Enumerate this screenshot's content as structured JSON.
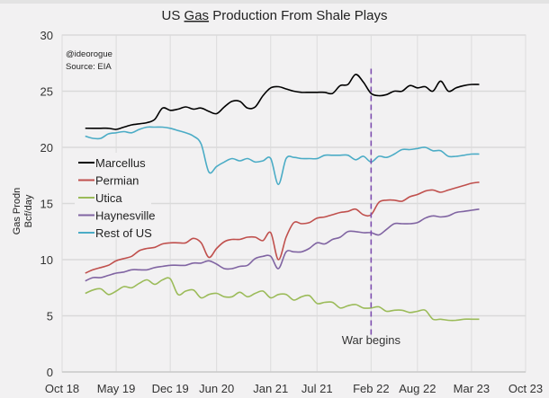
{
  "chart_data": {
    "type": "line",
    "title_parts": {
      "pre": "US ",
      "underlined": "Gas",
      "post": " Production From Shale Plays"
    },
    "ylabel_lines": [
      "Gas Prodn",
      "Bcf/day"
    ],
    "xlabel": "",
    "credit": "@ideorogue",
    "source": "Source: EIA",
    "ylim": [
      0,
      30
    ],
    "yticks": [
      0,
      5,
      10,
      15,
      20,
      25,
      30
    ],
    "xlim": [
      "2018-10",
      "2023-10"
    ],
    "xticks": [
      {
        "date": "2018-10",
        "label": "Oct 18"
      },
      {
        "date": "2019-05",
        "label": "May 19"
      },
      {
        "date": "2019-12",
        "label": "Dec 19"
      },
      {
        "date": "2020-06",
        "label": "Jun 20"
      },
      {
        "date": "2021-01",
        "label": "Jan 21"
      },
      {
        "date": "2021-07",
        "label": "Jul 21"
      },
      {
        "date": "2022-02",
        "label": "Feb 22"
      },
      {
        "date": "2022-08",
        "label": "Aug 22"
      },
      {
        "date": "2023-03",
        "label": "Mar 23"
      },
      {
        "date": "2023-10",
        "label": "Oct 23"
      }
    ],
    "grid": true,
    "legend_position": "left",
    "annotation": {
      "date": "2022-02",
      "label": "War begins",
      "color": "#7e4fb0",
      "style": "dashed",
      "yrange": [
        3,
        27
      ]
    },
    "x": [
      "2019-01",
      "2019-02",
      "2019-03",
      "2019-04",
      "2019-05",
      "2019-06",
      "2019-07",
      "2019-08",
      "2019-09",
      "2019-10",
      "2019-11",
      "2019-12",
      "2020-01",
      "2020-02",
      "2020-03",
      "2020-04",
      "2020-05",
      "2020-06",
      "2020-07",
      "2020-08",
      "2020-09",
      "2020-10",
      "2020-11",
      "2020-12",
      "2021-01",
      "2021-02",
      "2021-03",
      "2021-04",
      "2021-05",
      "2021-06",
      "2021-07",
      "2021-08",
      "2021-09",
      "2021-10",
      "2021-11",
      "2021-12",
      "2022-01",
      "2022-02",
      "2022-03",
      "2022-04",
      "2022-05",
      "2022-06",
      "2022-07",
      "2022-08",
      "2022-09",
      "2022-10",
      "2022-11",
      "2022-12",
      "2023-01",
      "2023-02",
      "2023-03",
      "2023-04"
    ],
    "series": [
      {
        "name": "Marcellus",
        "color": "#000000",
        "values": [
          21.7,
          21.7,
          21.7,
          21.7,
          21.6,
          21.8,
          22.0,
          22.1,
          22.2,
          22.5,
          23.5,
          23.3,
          23.4,
          23.6,
          23.4,
          23.5,
          23.2,
          23.0,
          23.6,
          24.1,
          24.1,
          23.5,
          23.6,
          24.6,
          25.3,
          25.4,
          25.2,
          25.0,
          24.9,
          24.9,
          24.9,
          24.9,
          24.8,
          25.5,
          25.6,
          26.5,
          25.8,
          24.8,
          24.6,
          24.7,
          25.0,
          25.0,
          25.5,
          25.3,
          25.4,
          25.0,
          25.9,
          25.0,
          25.3,
          25.5,
          25.6,
          25.6
        ]
      },
      {
        "name": "Permian",
        "color": "#c0504d",
        "values": [
          8.8,
          9.1,
          9.3,
          9.5,
          9.9,
          10.1,
          10.3,
          10.8,
          11.0,
          11.1,
          11.4,
          11.5,
          11.5,
          11.5,
          11.9,
          11.5,
          10.2,
          11.0,
          11.6,
          11.8,
          11.8,
          12.0,
          12.0,
          11.7,
          12.4,
          10.0,
          12.0,
          13.3,
          13.2,
          13.3,
          13.7,
          13.8,
          14.0,
          14.2,
          14.3,
          14.5,
          14.0,
          14.0,
          15.1,
          15.3,
          15.3,
          15.2,
          15.6,
          15.8,
          16.1,
          16.2,
          16.0,
          16.2,
          16.4,
          16.6,
          16.8,
          16.9
        ]
      },
      {
        "name": "Utica",
        "color": "#9bbb59",
        "values": [
          7.0,
          7.3,
          7.4,
          6.9,
          7.2,
          7.6,
          7.5,
          7.9,
          8.2,
          7.8,
          8.2,
          8.3,
          6.9,
          7.2,
          7.3,
          6.6,
          6.9,
          7.0,
          6.7,
          6.7,
          7.1,
          6.7,
          7.0,
          7.2,
          6.6,
          6.9,
          6.9,
          6.4,
          6.7,
          6.8,
          6.1,
          6.2,
          6.2,
          5.7,
          5.9,
          6.0,
          5.7,
          5.7,
          5.8,
          5.4,
          5.5,
          5.5,
          5.3,
          5.4,
          5.5,
          4.7,
          4.7,
          4.6,
          4.6,
          4.7,
          4.7,
          4.7
        ]
      },
      {
        "name": "Haynesville",
        "color": "#8064a2",
        "values": [
          8.1,
          8.4,
          8.4,
          8.6,
          8.8,
          8.9,
          9.1,
          9.1,
          9.1,
          9.3,
          9.4,
          9.5,
          9.5,
          9.5,
          9.7,
          9.7,
          9.9,
          9.6,
          9.2,
          9.2,
          9.4,
          9.5,
          10.1,
          10.3,
          10.3,
          9.2,
          10.7,
          10.7,
          10.7,
          11.0,
          11.5,
          11.4,
          11.8,
          12.0,
          12.5,
          12.5,
          12.4,
          12.4,
          12.2,
          12.7,
          13.2,
          13.2,
          13.2,
          13.3,
          13.7,
          13.9,
          13.8,
          13.9,
          14.2,
          14.3,
          14.4,
          14.5
        ]
      },
      {
        "name": "Rest of US",
        "color": "#4bacc6",
        "values": [
          21.0,
          20.8,
          20.8,
          21.2,
          21.3,
          21.4,
          21.3,
          21.6,
          21.8,
          21.8,
          21.8,
          21.7,
          21.5,
          21.3,
          21.0,
          20.3,
          17.8,
          18.3,
          18.7,
          19.0,
          18.8,
          19.0,
          18.7,
          18.8,
          19.0,
          16.7,
          19.0,
          19.1,
          19.0,
          19.0,
          19.0,
          19.3,
          19.3,
          19.3,
          19.3,
          18.9,
          19.2,
          18.7,
          19.2,
          19.1,
          19.4,
          19.8,
          19.8,
          19.9,
          20.0,
          19.7,
          19.7,
          19.2,
          19.2,
          19.3,
          19.4,
          19.4
        ]
      }
    ]
  }
}
